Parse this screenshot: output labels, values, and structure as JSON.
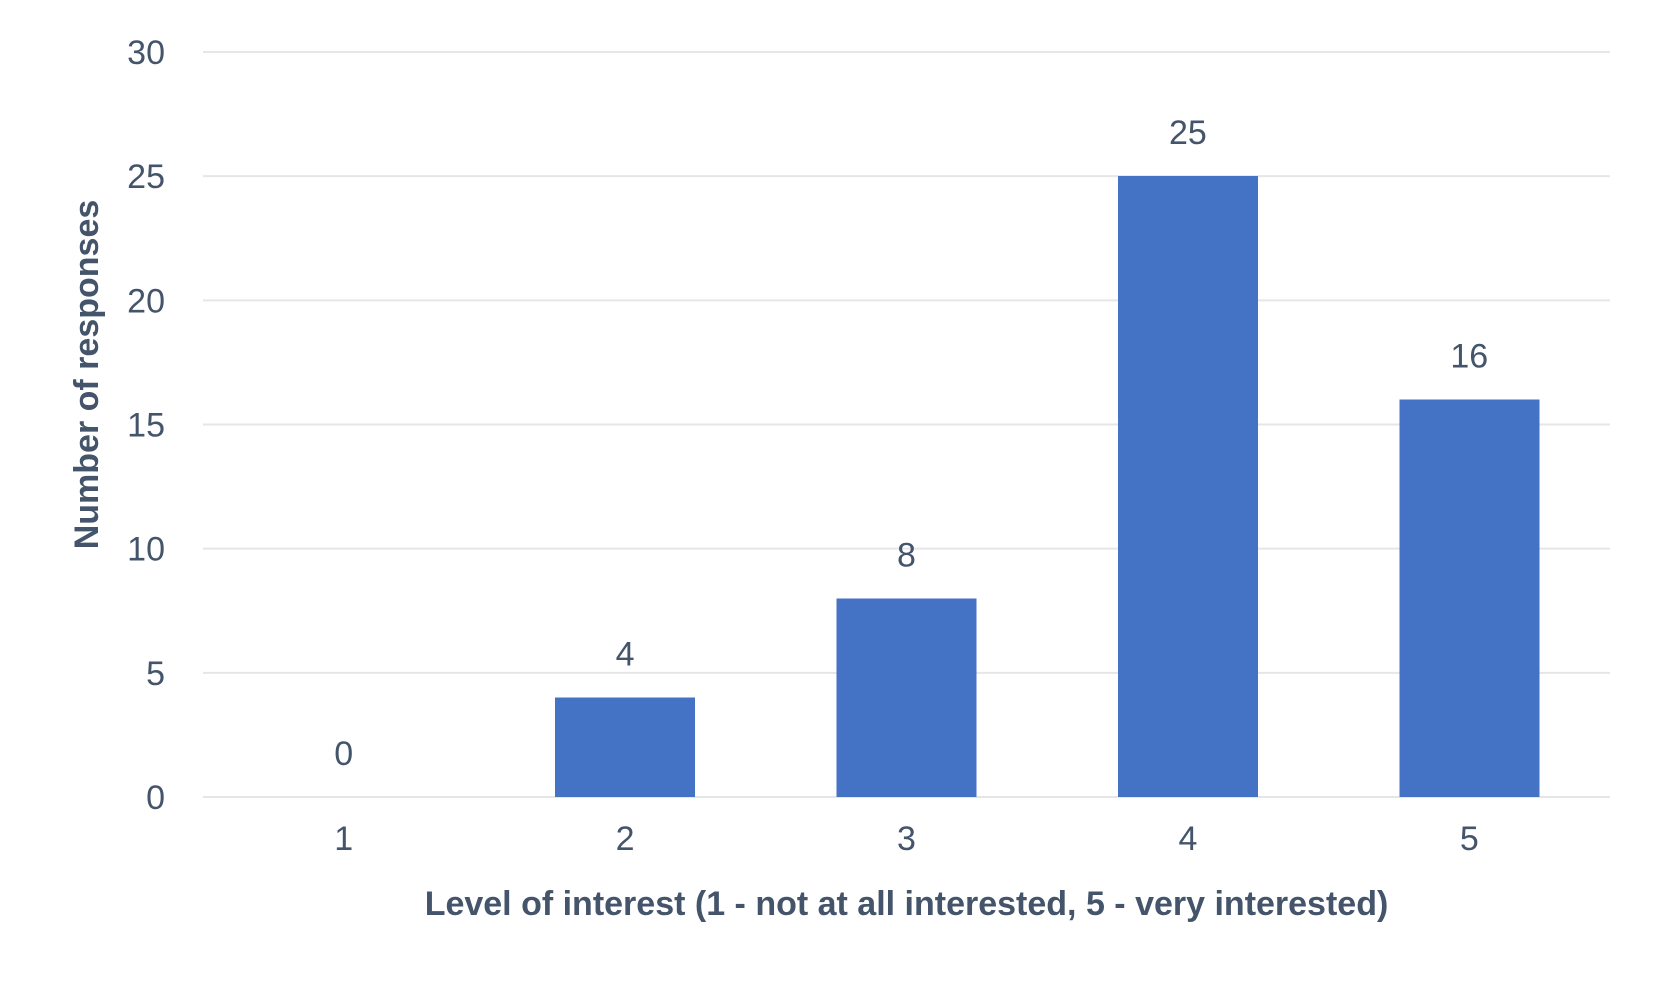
{
  "chart_data": {
    "type": "bar",
    "categories": [
      "1",
      "2",
      "3",
      "4",
      "5"
    ],
    "values": [
      0,
      4,
      8,
      25,
      16
    ],
    "data_labels": [
      "0",
      "4",
      "8",
      "25",
      "16"
    ],
    "xlabel": "Level of interest (1 - not at all interested, 5 - very interested)",
    "ylabel": "Number of responses",
    "ylim": [
      0,
      30
    ],
    "yticks": [
      0,
      5,
      10,
      15,
      20,
      25,
      30
    ],
    "ytick_labels": [
      "0",
      "5",
      "10",
      "15",
      "20",
      "25",
      "30"
    ],
    "grid": true,
    "legend": "none",
    "colors": {
      "bar": "#4472c4",
      "text": "#44546a",
      "grid": "#e6e6e6"
    }
  }
}
